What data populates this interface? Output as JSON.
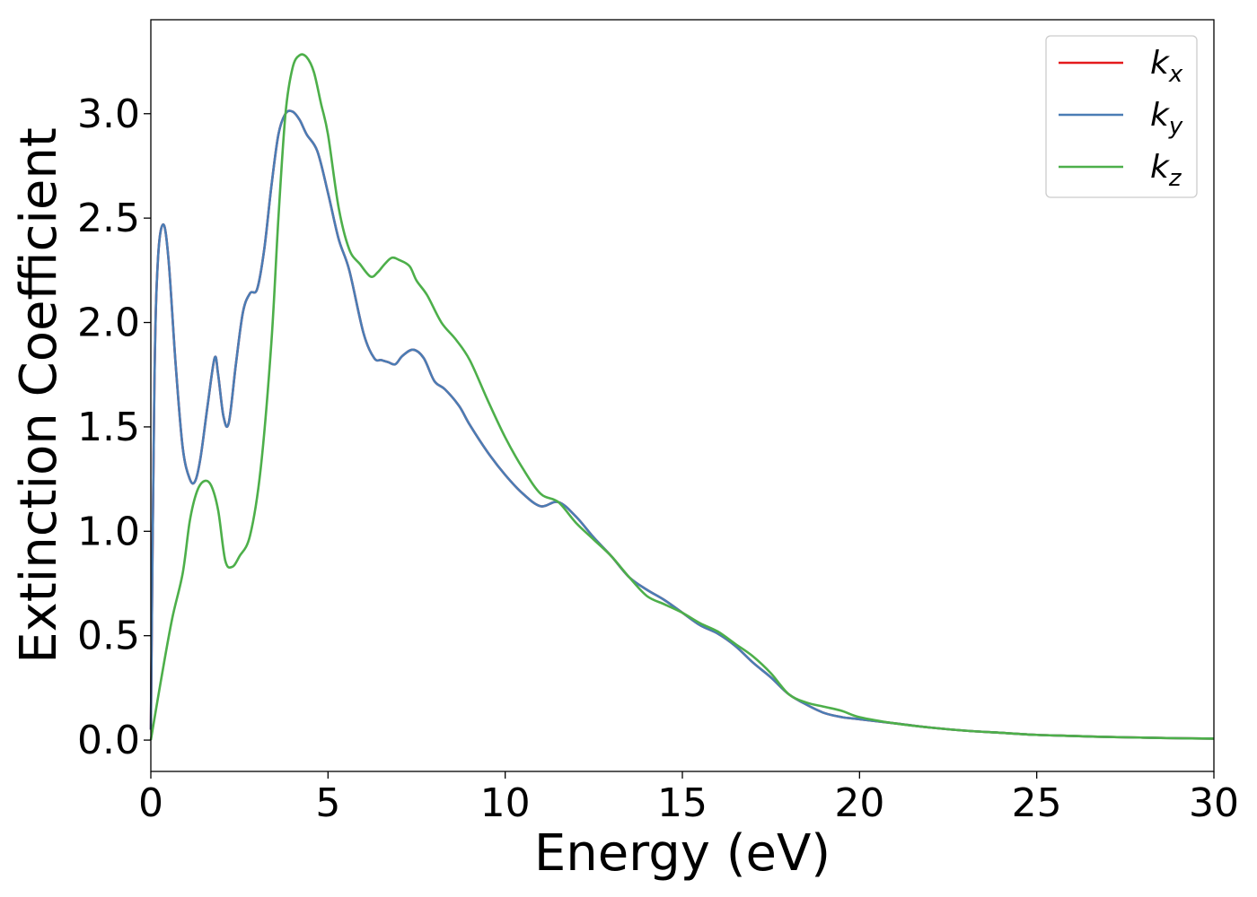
{
  "chart_data": {
    "type": "line",
    "title": "",
    "xlabel": "Energy (eV)",
    "ylabel": "Extinction Coefficient",
    "xlim": [
      0,
      30
    ],
    "ylim": [
      -0.15,
      3.45
    ],
    "xticks": [
      0,
      5,
      10,
      15,
      20,
      25,
      30
    ],
    "xtick_labels": [
      "0",
      "5",
      "10",
      "15",
      "20",
      "25",
      "30"
    ],
    "yticks": [
      0.0,
      0.5,
      1.0,
      1.5,
      2.0,
      2.5,
      3.0
    ],
    "ytick_labels": [
      "0.0",
      "0.5",
      "1.0",
      "1.5",
      "2.0",
      "2.5",
      "3.0"
    ],
    "grid": false,
    "legend_position": "top-right",
    "series": [
      {
        "name": "kx",
        "label_main": "k",
        "label_sub": "x",
        "color": "#e41a1c",
        "x": [
          0,
          0.1,
          0.2,
          0.35,
          0.5,
          0.7,
          0.9,
          1.1,
          1.25,
          1.4,
          1.6,
          1.8,
          1.9,
          2.05,
          2.2,
          2.4,
          2.6,
          2.8,
          3.0,
          3.2,
          3.4,
          3.6,
          3.8,
          4.0,
          4.2,
          4.4,
          4.7,
          5.0,
          5.3,
          5.6,
          6.0,
          6.3,
          6.5,
          6.7,
          6.9,
          7.1,
          7.4,
          7.7,
          8.0,
          8.3,
          8.7,
          9.0,
          9.5,
          10.0,
          10.5,
          11.0,
          11.5,
          12.0,
          12.5,
          13.0,
          13.5,
          14.0,
          14.5,
          15.0,
          15.5,
          16.0,
          16.5,
          17.0,
          17.5,
          18.0,
          18.5,
          19.0,
          19.5,
          20.0,
          21.0,
          22.0,
          23.0,
          24.0,
          25.0,
          26.0,
          27.0,
          28.0,
          29.0,
          30.0
        ],
        "y": [
          0.05,
          1.7,
          2.3,
          2.47,
          2.3,
          1.8,
          1.4,
          1.25,
          1.24,
          1.35,
          1.6,
          1.83,
          1.75,
          1.55,
          1.52,
          1.8,
          2.05,
          2.14,
          2.16,
          2.35,
          2.65,
          2.9,
          3.0,
          3.01,
          2.97,
          2.9,
          2.82,
          2.62,
          2.4,
          2.25,
          1.95,
          1.83,
          1.82,
          1.81,
          1.8,
          1.84,
          1.87,
          1.83,
          1.72,
          1.68,
          1.6,
          1.51,
          1.38,
          1.27,
          1.18,
          1.12,
          1.14,
          1.07,
          0.97,
          0.88,
          0.78,
          0.72,
          0.67,
          0.61,
          0.55,
          0.51,
          0.45,
          0.37,
          0.3,
          0.22,
          0.17,
          0.13,
          0.11,
          0.1,
          0.08,
          0.06,
          0.045,
          0.035,
          0.025,
          0.02,
          0.015,
          0.012,
          0.009,
          0.007
        ]
      },
      {
        "name": "ky",
        "label_main": "k",
        "label_sub": "y",
        "color": "#4a7db5",
        "x": [
          0,
          0.1,
          0.2,
          0.35,
          0.5,
          0.7,
          0.9,
          1.1,
          1.25,
          1.4,
          1.6,
          1.8,
          1.9,
          2.05,
          2.2,
          2.4,
          2.6,
          2.8,
          3.0,
          3.2,
          3.4,
          3.6,
          3.8,
          4.0,
          4.2,
          4.4,
          4.7,
          5.0,
          5.3,
          5.6,
          6.0,
          6.3,
          6.5,
          6.7,
          6.9,
          7.1,
          7.4,
          7.7,
          8.0,
          8.3,
          8.7,
          9.0,
          9.5,
          10.0,
          10.5,
          11.0,
          11.5,
          12.0,
          12.5,
          13.0,
          13.5,
          14.0,
          14.5,
          15.0,
          15.5,
          16.0,
          16.5,
          17.0,
          17.5,
          18.0,
          18.5,
          19.0,
          19.5,
          20.0,
          21.0,
          22.0,
          23.0,
          24.0,
          25.0,
          26.0,
          27.0,
          28.0,
          29.0,
          30.0
        ],
        "y": [
          0.05,
          1.7,
          2.3,
          2.47,
          2.3,
          1.8,
          1.4,
          1.25,
          1.24,
          1.35,
          1.6,
          1.83,
          1.75,
          1.55,
          1.52,
          1.8,
          2.05,
          2.14,
          2.16,
          2.35,
          2.65,
          2.9,
          3.0,
          3.01,
          2.97,
          2.9,
          2.82,
          2.62,
          2.4,
          2.25,
          1.95,
          1.83,
          1.82,
          1.81,
          1.8,
          1.84,
          1.87,
          1.83,
          1.72,
          1.68,
          1.6,
          1.51,
          1.38,
          1.27,
          1.18,
          1.12,
          1.14,
          1.07,
          0.97,
          0.88,
          0.78,
          0.72,
          0.67,
          0.61,
          0.55,
          0.51,
          0.45,
          0.37,
          0.3,
          0.22,
          0.17,
          0.13,
          0.11,
          0.1,
          0.08,
          0.06,
          0.045,
          0.035,
          0.025,
          0.02,
          0.015,
          0.012,
          0.009,
          0.007
        ]
      },
      {
        "name": "kz",
        "label_main": "k",
        "label_sub": "z",
        "color": "#4daf4a",
        "x": [
          0,
          0.3,
          0.6,
          0.9,
          1.1,
          1.3,
          1.5,
          1.7,
          1.9,
          2.1,
          2.3,
          2.5,
          2.8,
          3.1,
          3.4,
          3.6,
          3.8,
          4.0,
          4.2,
          4.4,
          4.6,
          4.8,
          5.0,
          5.3,
          5.6,
          5.9,
          6.2,
          6.4,
          6.6,
          6.8,
          7.0,
          7.3,
          7.5,
          7.8,
          8.2,
          8.6,
          9.0,
          9.5,
          10.0,
          10.5,
          11.0,
          11.5,
          12.0,
          12.5,
          13.0,
          13.5,
          14.0,
          14.5,
          15.0,
          15.5,
          16.0,
          16.5,
          17.0,
          17.5,
          18.0,
          18.5,
          19.0,
          19.5,
          20.0,
          21.0,
          22.0,
          23.0,
          24.0,
          25.0,
          26.0,
          27.0,
          28.0,
          29.0,
          30.0
        ],
        "y": [
          0.0,
          0.3,
          0.58,
          0.8,
          1.05,
          1.19,
          1.24,
          1.22,
          1.1,
          0.86,
          0.83,
          0.88,
          0.98,
          1.3,
          1.9,
          2.5,
          3.0,
          3.22,
          3.28,
          3.27,
          3.2,
          3.05,
          2.9,
          2.55,
          2.35,
          2.28,
          2.22,
          2.24,
          2.28,
          2.31,
          2.3,
          2.27,
          2.2,
          2.13,
          2.0,
          1.92,
          1.82,
          1.63,
          1.45,
          1.3,
          1.18,
          1.14,
          1.04,
          0.96,
          0.88,
          0.78,
          0.69,
          0.65,
          0.61,
          0.56,
          0.52,
          0.46,
          0.4,
          0.32,
          0.22,
          0.18,
          0.16,
          0.14,
          0.11,
          0.08,
          0.06,
          0.045,
          0.035,
          0.025,
          0.02,
          0.015,
          0.012,
          0.009,
          0.007
        ]
      }
    ]
  }
}
